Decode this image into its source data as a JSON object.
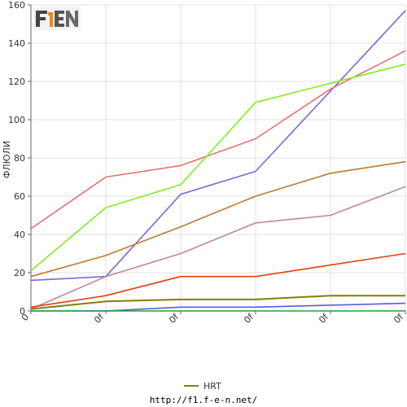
{
  "chart_data": {
    "type": "line",
    "xlabel": "",
    "ylabel": "ФЛЮЛИ",
    "ylim": [
      0,
      160
    ],
    "yticks": [
      0,
      20,
      40,
      60,
      80,
      100,
      120,
      140,
      160
    ],
    "categories": [
      "0",
      "0f",
      "0f",
      "0f",
      "0f",
      "0f"
    ],
    "grid": true,
    "legend_position": "bottom",
    "series": [
      {
        "name": "",
        "color": "#7b68d8",
        "values": [
          16,
          18,
          61,
          73,
          115,
          157
        ]
      },
      {
        "name": "",
        "color": "#e87070",
        "values": [
          43,
          70,
          76,
          90,
          116,
          136
        ]
      },
      {
        "name": "",
        "color": "#80ee20",
        "values": [
          21,
          54,
          66,
          109,
          119,
          129
        ]
      },
      {
        "name": "",
        "color": "#c07830",
        "values": [
          18,
          29,
          44,
          60,
          72,
          78
        ]
      },
      {
        "name": "",
        "color": "#c08898",
        "values": [
          1,
          18,
          30,
          46,
          50,
          65
        ]
      },
      {
        "name": "",
        "color": "#e04010",
        "values": [
          2,
          8,
          18,
          18,
          24,
          30
        ]
      },
      {
        "name": "HRT",
        "color": "#808000",
        "values": [
          1,
          5,
          6,
          6,
          8,
          8
        ]
      },
      {
        "name": "",
        "color": "#5a5ae0",
        "values": [
          0,
          0,
          2,
          2,
          3,
          4
        ]
      },
      {
        "name": "",
        "color": "#20a040",
        "values": [
          0,
          0,
          0,
          0,
          0,
          0
        ]
      }
    ]
  },
  "legend": {
    "label": "HRT",
    "color": "#808000"
  },
  "footer": {
    "url": "http://f1.f-e-n.net/"
  },
  "logo": {
    "text": "F1EN"
  }
}
